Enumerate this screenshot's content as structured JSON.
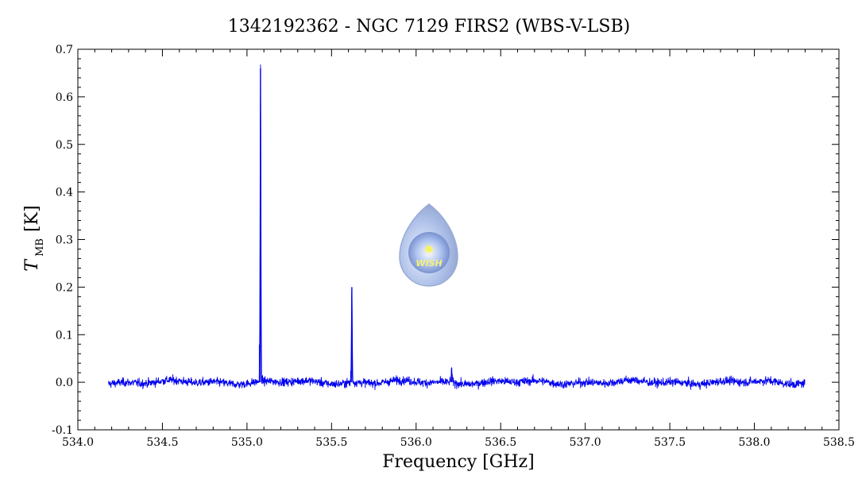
{
  "chart_data": {
    "type": "line",
    "title": "1342192362 - NGC 7129 FIRS2 (WBS-V-LSB)",
    "xlabel": "Frequency [GHz]",
    "ylabel_main": "T",
    "ylabel_sub": "MB",
    "ylabel_unit": "[K]",
    "xlim": [
      534.0,
      538.5
    ],
    "ylim": [
      -0.1,
      0.7
    ],
    "x_ticks": [
      "534.0",
      "534.5",
      "535.0",
      "535.5",
      "536.0",
      "536.5",
      "537.0",
      "537.5",
      "538.0",
      "538.5"
    ],
    "y_ticks": [
      "-0.1",
      "0.0",
      "0.1",
      "0.2",
      "0.3",
      "0.4",
      "0.5",
      "0.6",
      "0.7"
    ],
    "grid": false,
    "series": [
      {
        "color": "#0000ee",
        "x_range": [
          534.18,
          538.3
        ],
        "baseline": 0.0,
        "noise_rms": 0.005,
        "peaks": [
          {
            "x": 535.08,
            "y": 0.66
          },
          {
            "x": 535.62,
            "y": 0.2
          },
          {
            "x": 536.21,
            "y": 0.03
          }
        ]
      }
    ],
    "logo_text": "WISH"
  }
}
